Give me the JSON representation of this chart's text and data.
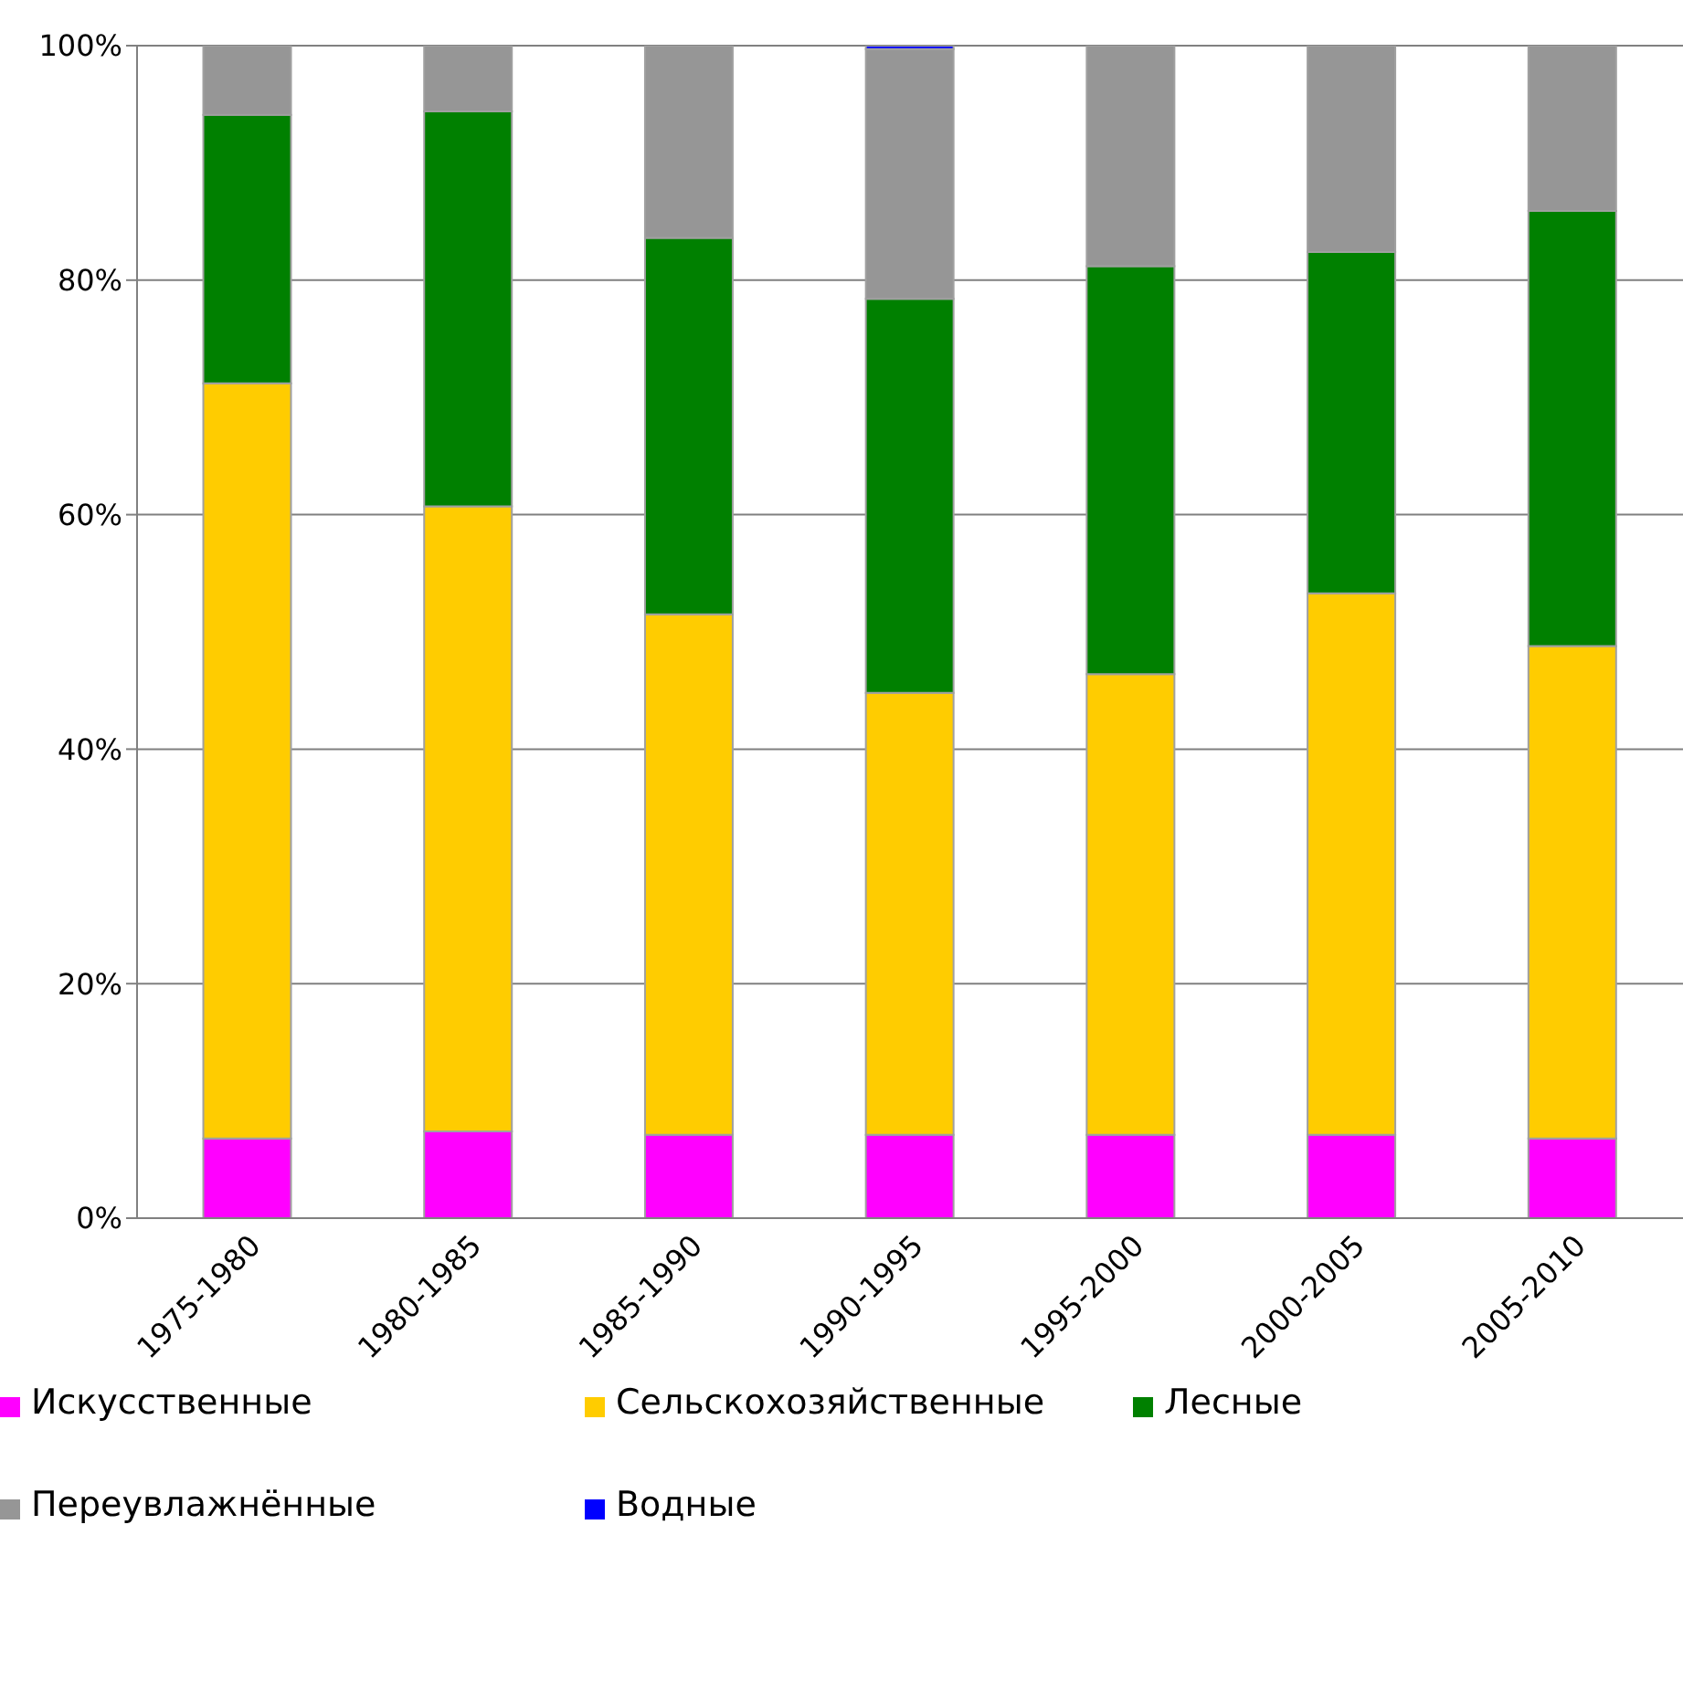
{
  "chart_data": {
    "type": "bar",
    "stacked": true,
    "categories": [
      "1975-1980",
      "1980-1985",
      "1985-1990",
      "1990-1995",
      "1995-2000",
      "2000-2005",
      "2005-2010"
    ],
    "series": [
      {
        "name": "Искусственные",
        "color": "#ff00ff",
        "values": [
          6.8,
          7.4,
          7.1,
          7.1,
          7.1,
          7.1,
          6.8
        ]
      },
      {
        "name": "Сельскохозяйственные",
        "color": "#ffcc00",
        "values": [
          64.4,
          53.3,
          44.4,
          37.7,
          39.3,
          46.2,
          42.0
        ]
      },
      {
        "name": "Лесные",
        "color": "#008000",
        "values": [
          22.9,
          33.7,
          32.1,
          33.6,
          34.8,
          29.1,
          37.1
        ]
      },
      {
        "name": "Переувлажнённые",
        "color": "#969696",
        "values": [
          5.9,
          5.6,
          16.4,
          21.3,
          18.8,
          17.6,
          14.1
        ]
      },
      {
        "name": "Водные",
        "color": "#0000ff",
        "values": [
          0,
          0,
          0,
          0.3,
          0,
          0,
          0
        ]
      }
    ],
    "ylim": [
      0,
      100
    ],
    "yticks": [
      {
        "value": 0,
        "label": "0%"
      },
      {
        "value": 20,
        "label": "20%"
      },
      {
        "value": 40,
        "label": "40%"
      },
      {
        "value": 60,
        "label": "60%"
      },
      {
        "value": 80,
        "label": "80%"
      },
      {
        "value": 100,
        "label": "100%"
      }
    ],
    "grid": "y",
    "legend": "bottom"
  }
}
